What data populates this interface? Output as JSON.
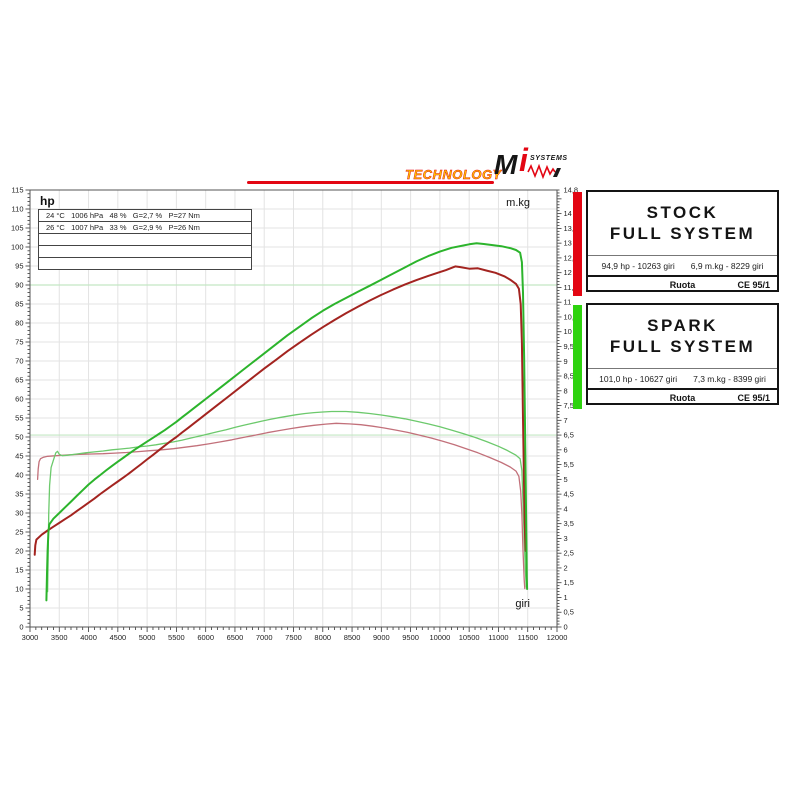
{
  "logo": {
    "technology_label": "TECHNOLOGY",
    "brand_m": "M",
    "brand_i": "i",
    "brand_systems": "SYSTEMS",
    "line_color": "#e30613",
    "technology_color": "#fcc500"
  },
  "chart_data": {
    "type": "line",
    "xlabel": "giri",
    "ylabel_left": "hp",
    "ylabel_right": "m.kg",
    "x_range": [
      3000,
      12000
    ],
    "x_label_step": 500,
    "x_minor_step": 100,
    "left_range": [
      0,
      115
    ],
    "left_label_step": 5,
    "right_range": [
      0,
      14.8
    ],
    "right_label_step": 0.5,
    "right_top_label": "14,8",
    "grid": true,
    "grid_color": "#e3e3e3",
    "frame_color": "#555555",
    "tick_color": "#333333",
    "conditions_rows": [
      "24 °C   1006 hPa   48 %   G=2,7 %   P=27 Nm",
      "26 °C   1007 hPa   33 %   G=2,9 %   P=26 Nm",
      "",
      "",
      ""
    ],
    "reference_lines": [
      {
        "axis": "left",
        "value": 90,
        "color": "#c3e7c3"
      },
      {
        "axis": "right",
        "value": 6.5,
        "color": "#c3e7c3"
      }
    ],
    "series": [
      {
        "name": "stock-torque",
        "axis": "right",
        "color": "#c2707a",
        "width": 1.3,
        "points": [
          [
            3130,
            5.0
          ],
          [
            3140,
            5.35
          ],
          [
            3155,
            5.6
          ],
          [
            3180,
            5.7
          ],
          [
            3230,
            5.75
          ],
          [
            3300,
            5.78
          ],
          [
            3450,
            5.8
          ],
          [
            3650,
            5.83
          ],
          [
            3850,
            5.85
          ],
          [
            4050,
            5.86
          ],
          [
            4250,
            5.87
          ],
          [
            4450,
            5.89
          ],
          [
            4650,
            5.91
          ],
          [
            4850,
            5.94
          ],
          [
            5050,
            5.97
          ],
          [
            5250,
            6.0
          ],
          [
            5450,
            6.04
          ],
          [
            5650,
            6.09
          ],
          [
            5850,
            6.14
          ],
          [
            6050,
            6.2
          ],
          [
            6250,
            6.27
          ],
          [
            6450,
            6.34
          ],
          [
            6650,
            6.42
          ],
          [
            6850,
            6.5
          ],
          [
            7050,
            6.58
          ],
          [
            7250,
            6.65
          ],
          [
            7450,
            6.72
          ],
          [
            7650,
            6.78
          ],
          [
            7850,
            6.83
          ],
          [
            8050,
            6.87
          ],
          [
            8229,
            6.9
          ],
          [
            8450,
            6.88
          ],
          [
            8650,
            6.85
          ],
          [
            8850,
            6.8
          ],
          [
            9050,
            6.74
          ],
          [
            9250,
            6.67
          ],
          [
            9450,
            6.59
          ],
          [
            9650,
            6.5
          ],
          [
            9850,
            6.4
          ],
          [
            10050,
            6.29
          ],
          [
            10250,
            6.17
          ],
          [
            10450,
            6.04
          ],
          [
            10650,
            5.9
          ],
          [
            10850,
            5.74
          ],
          [
            11050,
            5.57
          ],
          [
            11200,
            5.42
          ],
          [
            11300,
            5.28
          ],
          [
            11350,
            5.1
          ],
          [
            11380,
            4.6
          ],
          [
            11400,
            3.8
          ],
          [
            11420,
            2.6
          ],
          [
            11440,
            1.6
          ],
          [
            11450,
            1.3
          ]
        ]
      },
      {
        "name": "spark-torque",
        "axis": "right",
        "color": "#6cc96c",
        "width": 1.3,
        "points": [
          [
            3300,
            1.2
          ],
          [
            3310,
            2.5
          ],
          [
            3320,
            3.8
          ],
          [
            3335,
            4.8
          ],
          [
            3360,
            5.4
          ],
          [
            3400,
            5.65
          ],
          [
            3440,
            5.9
          ],
          [
            3470,
            5.95
          ],
          [
            3500,
            5.85
          ],
          [
            3550,
            5.8
          ],
          [
            3650,
            5.82
          ],
          [
            3800,
            5.86
          ],
          [
            3950,
            5.9
          ],
          [
            4100,
            5.93
          ],
          [
            4250,
            5.96
          ],
          [
            4400,
            6.0
          ],
          [
            4550,
            6.03
          ],
          [
            4700,
            6.06
          ],
          [
            4850,
            6.1
          ],
          [
            5000,
            6.13
          ],
          [
            5150,
            6.17
          ],
          [
            5300,
            6.22
          ],
          [
            5450,
            6.27
          ],
          [
            5600,
            6.33
          ],
          [
            5750,
            6.4
          ],
          [
            5900,
            6.47
          ],
          [
            6050,
            6.54
          ],
          [
            6200,
            6.61
          ],
          [
            6350,
            6.68
          ],
          [
            6500,
            6.76
          ],
          [
            6650,
            6.83
          ],
          [
            6800,
            6.9
          ],
          [
            6950,
            6.97
          ],
          [
            7100,
            7.03
          ],
          [
            7250,
            7.09
          ],
          [
            7400,
            7.14
          ],
          [
            7550,
            7.19
          ],
          [
            7700,
            7.23
          ],
          [
            7850,
            7.26
          ],
          [
            8000,
            7.28
          ],
          [
            8150,
            7.3
          ],
          [
            8399,
            7.3
          ],
          [
            8600,
            7.27
          ],
          [
            8800,
            7.23
          ],
          [
            9000,
            7.18
          ],
          [
            9200,
            7.12
          ],
          [
            9400,
            7.05
          ],
          [
            9600,
            6.97
          ],
          [
            9800,
            6.88
          ],
          [
            10000,
            6.78
          ],
          [
            10200,
            6.67
          ],
          [
            10400,
            6.55
          ],
          [
            10600,
            6.42
          ],
          [
            10800,
            6.28
          ],
          [
            11000,
            6.12
          ],
          [
            11150,
            5.98
          ],
          [
            11300,
            5.82
          ],
          [
            11370,
            5.7
          ],
          [
            11400,
            5.3
          ],
          [
            11420,
            4.2
          ],
          [
            11440,
            3.0
          ],
          [
            11460,
            1.9
          ],
          [
            11475,
            1.35
          ]
        ]
      },
      {
        "name": "stock-hp",
        "axis": "left",
        "color": "#a32420",
        "width": 2,
        "points": [
          [
            3080,
            19
          ],
          [
            3090,
            21.5
          ],
          [
            3110,
            23
          ],
          [
            3200,
            24.3
          ],
          [
            3300,
            25.4
          ],
          [
            3400,
            26.4
          ],
          [
            3500,
            27.4
          ],
          [
            3600,
            28.4
          ],
          [
            3700,
            29.4
          ],
          [
            3800,
            30.5
          ],
          [
            3900,
            31.6
          ],
          [
            4000,
            32.7
          ],
          [
            4100,
            33.8
          ],
          [
            4200,
            35
          ],
          [
            4300,
            36.1
          ],
          [
            4400,
            37.2
          ],
          [
            4500,
            38.3
          ],
          [
            4600,
            39.4
          ],
          [
            4700,
            40.5
          ],
          [
            4800,
            41.7
          ],
          [
            4900,
            42.9
          ],
          [
            5000,
            44.1
          ],
          [
            5100,
            45.3
          ],
          [
            5200,
            46.5
          ],
          [
            5300,
            47.7
          ],
          [
            5400,
            48.9
          ],
          [
            5500,
            50
          ],
          [
            5600,
            51.2
          ],
          [
            5700,
            52.4
          ],
          [
            5800,
            53.6
          ],
          [
            5900,
            54.8
          ],
          [
            6000,
            56
          ],
          [
            6200,
            58.4
          ],
          [
            6400,
            60.8
          ],
          [
            6600,
            63.2
          ],
          [
            6800,
            65.6
          ],
          [
            7000,
            68
          ],
          [
            7200,
            70.3
          ],
          [
            7400,
            72.6
          ],
          [
            7600,
            74.8
          ],
          [
            7800,
            76.9
          ],
          [
            8000,
            78.9
          ],
          [
            8200,
            80.8
          ],
          [
            8400,
            82.6
          ],
          [
            8600,
            84.3
          ],
          [
            8800,
            85.9
          ],
          [
            9000,
            87.4
          ],
          [
            9200,
            88.8
          ],
          [
            9400,
            90.1
          ],
          [
            9600,
            91.3
          ],
          [
            9800,
            92.4
          ],
          [
            10000,
            93.4
          ],
          [
            10100,
            93.9
          ],
          [
            10263,
            94.9
          ],
          [
            10350,
            94.7
          ],
          [
            10500,
            94.3
          ],
          [
            10650,
            94.4
          ],
          [
            10800,
            93.8
          ],
          [
            10950,
            93.2
          ],
          [
            11100,
            92.3
          ],
          [
            11200,
            91.4
          ],
          [
            11300,
            90.3
          ],
          [
            11350,
            89
          ],
          [
            11380,
            85
          ],
          [
            11400,
            75
          ],
          [
            11420,
            55
          ],
          [
            11440,
            35
          ],
          [
            11455,
            24
          ],
          [
            11465,
            20
          ]
        ]
      },
      {
        "name": "spark-hp",
        "axis": "left",
        "color": "#2cb42c",
        "width": 2,
        "points": [
          [
            3280,
            7
          ],
          [
            3290,
            14
          ],
          [
            3300,
            20
          ],
          [
            3315,
            25
          ],
          [
            3330,
            27
          ],
          [
            3400,
            28.5
          ],
          [
            3500,
            30
          ],
          [
            3600,
            31.5
          ],
          [
            3700,
            33
          ],
          [
            3800,
            34.5
          ],
          [
            3900,
            36
          ],
          [
            4000,
            37.5
          ],
          [
            4100,
            38.8
          ],
          [
            4200,
            40
          ],
          [
            4300,
            41.2
          ],
          [
            4400,
            42.4
          ],
          [
            4500,
            43.5
          ],
          [
            4600,
            44.6
          ],
          [
            4700,
            45.7
          ],
          [
            4800,
            46.8
          ],
          [
            4900,
            47.8
          ],
          [
            5000,
            48.8
          ],
          [
            5100,
            49.8
          ],
          [
            5200,
            50.8
          ],
          [
            5300,
            51.8
          ],
          [
            5400,
            52.9
          ],
          [
            5500,
            54
          ],
          [
            5600,
            55.2
          ],
          [
            5700,
            56.4
          ],
          [
            5800,
            57.6
          ],
          [
            5900,
            58.8
          ],
          [
            6000,
            60
          ],
          [
            6200,
            62.4
          ],
          [
            6400,
            64.8
          ],
          [
            6600,
            67.2
          ],
          [
            6800,
            69.6
          ],
          [
            7000,
            72
          ],
          [
            7200,
            74.4
          ],
          [
            7400,
            76.8
          ],
          [
            7600,
            79
          ],
          [
            7800,
            81.2
          ],
          [
            8000,
            83.2
          ],
          [
            8200,
            85
          ],
          [
            8400,
            86.6
          ],
          [
            8600,
            88.2
          ],
          [
            8800,
            89.8
          ],
          [
            9000,
            91.4
          ],
          [
            9200,
            93
          ],
          [
            9400,
            94.6
          ],
          [
            9600,
            96.2
          ],
          [
            9800,
            97.6
          ],
          [
            10000,
            98.8
          ],
          [
            10200,
            99.8
          ],
          [
            10400,
            100.4
          ],
          [
            10500,
            100.7
          ],
          [
            10627,
            101
          ],
          [
            10750,
            100.8
          ],
          [
            10900,
            100.5
          ],
          [
            11050,
            100.2
          ],
          [
            11200,
            99.7
          ],
          [
            11300,
            99.2
          ],
          [
            11370,
            98.5
          ],
          [
            11400,
            96
          ],
          [
            11420,
            88
          ],
          [
            11440,
            70
          ],
          [
            11460,
            45
          ],
          [
            11475,
            25
          ],
          [
            11485,
            13
          ],
          [
            11490,
            10
          ]
        ]
      }
    ]
  },
  "panels": [
    {
      "id": "stock",
      "bar_color": "#e30613",
      "title_line1": "STOCK",
      "title_line2": "FULL SYSTEM",
      "stat_hp": "94,9 hp - 10263 giri",
      "stat_torque": "6,9 m.kg - 8229 giri",
      "footer_left": "Ruota",
      "footer_right": "CE 95/1"
    },
    {
      "id": "spark",
      "bar_color": "#2ed30e",
      "title_line1": "SPARK",
      "title_line2": "FULL SYSTEM",
      "stat_hp": "101,0 hp - 10627 giri",
      "stat_torque": "7,3 m.kg - 8399 giri",
      "footer_left": "Ruota",
      "footer_right": "CE 95/1"
    }
  ]
}
